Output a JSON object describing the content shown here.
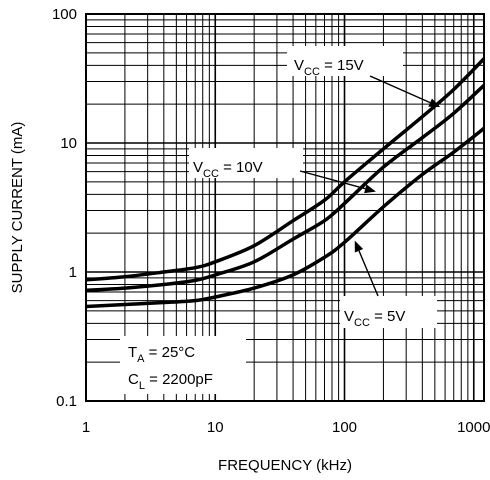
{
  "chart_data": {
    "type": "line",
    "xlabel": "FREQUENCY (kHz)",
    "ylabel": "SUPPLY CURRENT (mA)",
    "xscale": "log",
    "yscale": "log",
    "xlim": [
      1,
      1200
    ],
    "ylim": [
      0.1,
      100
    ],
    "grid": true,
    "x_ticks": [
      {
        "v": 1,
        "label": "1"
      },
      {
        "v": 10,
        "label": "10"
      },
      {
        "v": 100,
        "label": "100"
      },
      {
        "v": 1000,
        "label": "1000"
      }
    ],
    "y_ticks": [
      {
        "v": 0.1,
        "label": "0.1"
      },
      {
        "v": 1,
        "label": "1"
      },
      {
        "v": 10,
        "label": "10"
      },
      {
        "v": 100,
        "label": "100"
      }
    ],
    "series": [
      {
        "name": "VCC = 15V",
        "points": [
          [
            1,
            0.87
          ],
          [
            2,
            0.92
          ],
          [
            4,
            1.0
          ],
          [
            7,
            1.08
          ],
          [
            10,
            1.2
          ],
          [
            20,
            1.6
          ],
          [
            40,
            2.5
          ],
          [
            70,
            3.6
          ],
          [
            100,
            5.0
          ],
          [
            200,
            9.0
          ],
          [
            400,
            16.0
          ],
          [
            700,
            26.0
          ],
          [
            1200,
            45.0
          ]
        ]
      },
      {
        "name": "VCC = 10V",
        "points": [
          [
            1,
            0.72
          ],
          [
            2,
            0.75
          ],
          [
            4,
            0.8
          ],
          [
            7,
            0.86
          ],
          [
            10,
            0.95
          ],
          [
            20,
            1.2
          ],
          [
            40,
            1.8
          ],
          [
            70,
            2.5
          ],
          [
            100,
            3.4
          ],
          [
            200,
            6.5
          ],
          [
            400,
            11.0
          ],
          [
            700,
            17.0
          ],
          [
            1200,
            28.0
          ]
        ]
      },
      {
        "name": "VCC = 5V",
        "points": [
          [
            1,
            0.54
          ],
          [
            2,
            0.56
          ],
          [
            4,
            0.58
          ],
          [
            7,
            0.6
          ],
          [
            10,
            0.64
          ],
          [
            20,
            0.75
          ],
          [
            40,
            0.95
          ],
          [
            70,
            1.3
          ],
          [
            100,
            1.7
          ],
          [
            200,
            3.2
          ],
          [
            400,
            5.7
          ],
          [
            700,
            8.5
          ],
          [
            1200,
            13.0
          ]
        ]
      }
    ],
    "annotations": [
      {
        "id": "vcc15",
        "main": "V",
        "sub": "CC",
        "rest": " = 15V",
        "arrow_to": [
          550,
          19
        ]
      },
      {
        "id": "vcc10",
        "main": "V",
        "sub": "CC",
        "rest": " = 10V",
        "arrow_to": [
          175,
          4.2
        ]
      },
      {
        "id": "vcc5",
        "main": "V",
        "sub": "CC",
        "rest": " = 5V",
        "arrow_to": [
          120,
          1.75
        ]
      }
    ],
    "conditions": [
      {
        "main": "T",
        "sub": "A",
        "rest": " = 25°C"
      },
      {
        "main": "C",
        "sub": "L",
        "rest": " = 2200pF"
      }
    ]
  }
}
